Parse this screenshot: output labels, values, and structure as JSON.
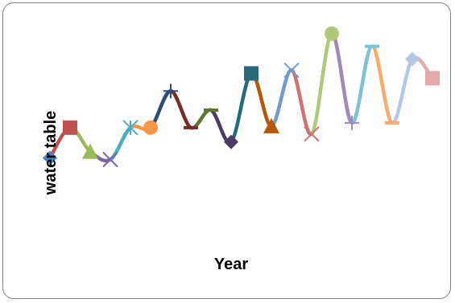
{
  "chart_data": {
    "type": "line",
    "title": "",
    "xlabel": "Year",
    "ylabel": "water table",
    "grid": false,
    "legend": "none",
    "x": [
      1,
      2,
      3,
      4,
      5,
      6,
      7,
      8,
      9,
      10,
      11,
      12,
      13,
      14,
      15,
      16,
      17,
      18,
      19,
      20
    ],
    "y": [
      4.0,
      5.9,
      4.4,
      3.9,
      5.9,
      5.9,
      8.2,
      5.9,
      7.0,
      5.0,
      9.3,
      6.0,
      9.5,
      5.5,
      11.8,
      6.2,
      11.0,
      6.2,
      10.2,
      9.0
    ],
    "ylim": [
      -5,
      13
    ],
    "segment_colors": [
      "#4f81bd",
      "#c0504d",
      "#9bbb59",
      "#8064a2",
      "#4bacc6",
      "#f79646",
      "#2c4d75",
      "#772c2a",
      "#5f7530",
      "#4d3b62",
      "#276a7c",
      "#b65708",
      "#729aca",
      "#cd7371",
      "#afc97a",
      "#9d8ab8",
      "#7cc1d5",
      "#f9ab6b",
      "#b4c7e7",
      "#e3aaa9"
    ],
    "markers": [
      "diamond",
      "square",
      "triangle",
      "x",
      "star",
      "circle",
      "plus",
      "dash",
      "dash",
      "diamond",
      "square",
      "triangle",
      "x",
      "x",
      "circle",
      "plus",
      "dash",
      "dash",
      "diamond",
      "square"
    ]
  }
}
